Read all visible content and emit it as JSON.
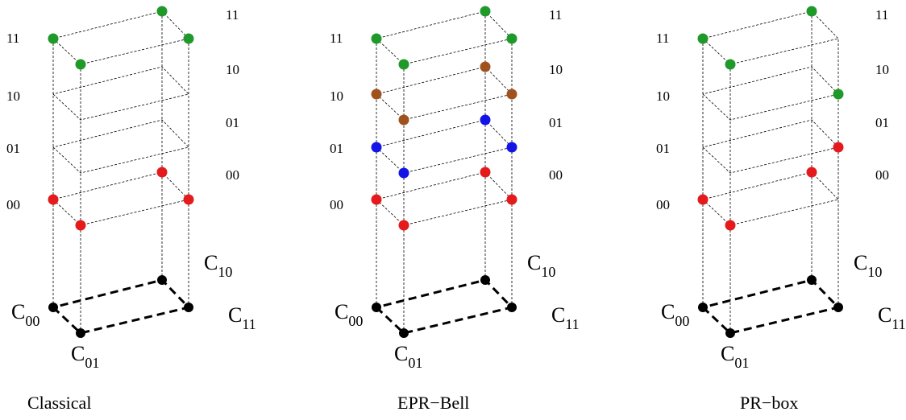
{
  "levels_front": [
    "00",
    "01",
    "10",
    "11"
  ],
  "levels_back": [
    "00",
    "01",
    "10",
    "11"
  ],
  "colors": {
    "red": "#e41a1c",
    "green": "#1f9a2a",
    "blue": "#1414e6",
    "brown": "#a0521e",
    "black": "#000000"
  },
  "corners": [
    {
      "main": "C",
      "sub": "00"
    },
    {
      "main": "C",
      "sub": "01"
    },
    {
      "main": "C",
      "sub": "10"
    },
    {
      "main": "C",
      "sub": "11"
    }
  ],
  "panels": [
    {
      "caption": "Classical",
      "points": [
        {
          "corner": "00",
          "level": "00",
          "color": "red"
        },
        {
          "corner": "00",
          "level": "11",
          "color": "green"
        },
        {
          "corner": "01",
          "level": "00",
          "color": "red"
        },
        {
          "corner": "01",
          "level": "11",
          "color": "green"
        },
        {
          "corner": "10",
          "level": "00",
          "color": "red"
        },
        {
          "corner": "10",
          "level": "11",
          "color": "green"
        },
        {
          "corner": "11",
          "level": "00",
          "color": "red"
        },
        {
          "corner": "11",
          "level": "11",
          "color": "green"
        }
      ]
    },
    {
      "caption": "EPR−Bell",
      "points": [
        {
          "corner": "00",
          "level": "00",
          "color": "red"
        },
        {
          "corner": "00",
          "level": "01",
          "color": "blue"
        },
        {
          "corner": "00",
          "level": "10",
          "color": "brown"
        },
        {
          "corner": "00",
          "level": "11",
          "color": "green"
        },
        {
          "corner": "01",
          "level": "00",
          "color": "red"
        },
        {
          "corner": "01",
          "level": "01",
          "color": "blue"
        },
        {
          "corner": "01",
          "level": "10",
          "color": "brown"
        },
        {
          "corner": "01",
          "level": "11",
          "color": "green"
        },
        {
          "corner": "10",
          "level": "00",
          "color": "red"
        },
        {
          "corner": "10",
          "level": "01",
          "color": "blue"
        },
        {
          "corner": "10",
          "level": "10",
          "color": "brown"
        },
        {
          "corner": "10",
          "level": "11",
          "color": "green"
        },
        {
          "corner": "11",
          "level": "00",
          "color": "red"
        },
        {
          "corner": "11",
          "level": "01",
          "color": "blue"
        },
        {
          "corner": "11",
          "level": "10",
          "color": "brown"
        },
        {
          "corner": "11",
          "level": "11",
          "color": "green"
        }
      ]
    },
    {
      "caption": "PR−box",
      "points": [
        {
          "corner": "00",
          "level": "00",
          "color": "red"
        },
        {
          "corner": "00",
          "level": "11",
          "color": "green"
        },
        {
          "corner": "01",
          "level": "00",
          "color": "red"
        },
        {
          "corner": "01",
          "level": "11",
          "color": "green"
        },
        {
          "corner": "10",
          "level": "00",
          "color": "red"
        },
        {
          "corner": "10",
          "level": "11",
          "color": "green"
        },
        {
          "corner": "11",
          "level": "01",
          "color": "red"
        },
        {
          "corner": "11",
          "level": "10",
          "color": "green"
        }
      ]
    }
  ]
}
